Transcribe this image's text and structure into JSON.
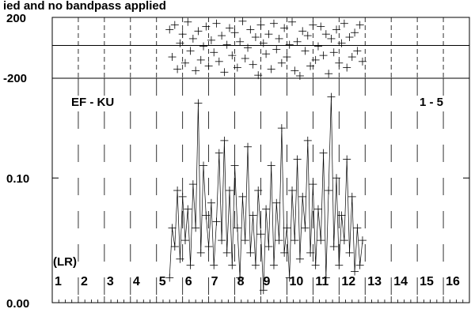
{
  "chart_data": {
    "type": "line",
    "title": "ied and no bandpass applied",
    "panels": {
      "phase": {
        "ylim": [
          -200,
          200
        ],
        "tick_labels": [
          "200",
          "-200"
        ]
      },
      "amplitude": {
        "ylim": [
          0.0,
          0.18
        ],
        "tick_labels": [
          "0.10",
          "0.00"
        ],
        "tick_values": [
          0.1,
          0.0
        ]
      }
    },
    "annotations": {
      "baseline": "EF - KU",
      "scan_range": "1 - 5",
      "polarization": "(LR)"
    },
    "channels": [
      "1",
      "2",
      "3",
      "4",
      "5",
      "6",
      "7",
      "8",
      "9",
      "10",
      "11",
      "12",
      "13",
      "14",
      "15",
      "16"
    ],
    "data_channel_range": [
      5,
      12
    ],
    "series": [
      {
        "panel": "amplitude",
        "x_channel": [
          5.0,
          5.1,
          5.2,
          5.3,
          5.4,
          5.5,
          5.6,
          5.7,
          5.8,
          5.9,
          6.0,
          6.1,
          6.2,
          6.3,
          6.4,
          6.5,
          6.6,
          6.7,
          6.8,
          6.9,
          7.0,
          7.1,
          7.2,
          7.3,
          7.4,
          7.5,
          7.6,
          7.7,
          7.8,
          7.9,
          8.0,
          8.1,
          8.2,
          8.3,
          8.4,
          8.5,
          8.6,
          8.7,
          8.8,
          8.9,
          9.0,
          9.1,
          9.2,
          9.3,
          9.4,
          9.5,
          9.6,
          9.7,
          9.8,
          9.9,
          10.0,
          10.1,
          10.2,
          10.3,
          10.4,
          10.5,
          10.6,
          10.7,
          10.8,
          10.9,
          11.0,
          11.1,
          11.2,
          11.3,
          11.4,
          11.5,
          11.6,
          11.7,
          11.8,
          11.9,
          12.0,
          12.1,
          12.2,
          12.3,
          12.4
        ],
        "y": [
          0.02,
          0.06,
          0.045,
          0.09,
          0.035,
          0.085,
          0.05,
          0.075,
          0.03,
          0.095,
          0.06,
          0.16,
          0.04,
          0.11,
          0.07,
          0.045,
          0.08,
          0.03,
          0.065,
          0.12,
          0.05,
          0.13,
          0.04,
          0.09,
          0.03,
          0.11,
          0.06,
          0.02,
          0.085,
          0.05,
          0.125,
          0.04,
          0.07,
          0.03,
          0.09,
          0.055,
          0.01,
          0.075,
          0.045,
          0.11,
          0.03,
          0.08,
          0.05,
          0.14,
          0.04,
          0.06,
          0.02,
          0.09,
          0.05,
          0.115,
          0.035,
          0.085,
          0.06,
          0.13,
          0.04,
          0.095,
          0.03,
          0.075,
          0.05,
          0.12,
          0.02,
          0.09,
          0.165,
          0.045,
          0.1,
          0.03,
          0.07,
          0.05,
          0.115,
          0.04,
          0.085,
          0.025,
          0.06,
          0.03,
          0.05
        ]
      },
      {
        "panel": "phase",
        "x_channel": [
          5.0,
          5.1,
          5.2,
          5.3,
          5.4,
          5.5,
          5.6,
          5.7,
          5.8,
          5.9,
          6.0,
          6.1,
          6.2,
          6.3,
          6.4,
          6.5,
          6.6,
          6.7,
          6.8,
          6.9,
          7.0,
          7.1,
          7.2,
          7.3,
          7.4,
          7.5,
          7.6,
          7.7,
          7.8,
          7.9,
          8.0,
          8.1,
          8.2,
          8.3,
          8.4,
          8.5,
          8.6,
          8.7,
          8.8,
          8.9,
          9.0,
          9.1,
          9.2,
          9.3,
          9.4,
          9.5,
          9.6,
          9.7,
          9.8,
          9.9,
          10.0,
          10.1,
          10.2,
          10.3,
          10.4,
          10.5,
          10.6,
          10.7,
          10.8,
          10.9,
          11.0,
          11.1,
          11.2,
          11.3,
          11.4,
          11.5,
          11.6,
          11.7,
          11.8,
          11.9,
          12.0,
          12.1,
          12.2,
          12.3,
          12.4
        ],
        "y": [
          120,
          -60,
          150,
          -140,
          30,
          90,
          -100,
          170,
          -20,
          60,
          -150,
          110,
          -80,
          10,
          140,
          -120,
          50,
          -30,
          160,
          -90,
          80,
          -160,
          20,
          130,
          -50,
          100,
          -130,
          40,
          175,
          -70,
          0,
          120,
          -110,
          70,
          -180,
          150,
          30,
          -40,
          90,
          -140,
          160,
          -10,
          60,
          -100,
          130,
          -60,
          20,
          170,
          -150,
          40,
          -190,
          110,
          -20,
          80,
          -120,
          150,
          -80,
          10,
          140,
          -50,
          90,
          -170,
          60,
          -30,
          120,
          -100,
          30,
          160,
          -130,
          70,
          -60,
          100,
          -20,
          150,
          -90
        ]
      }
    ]
  }
}
